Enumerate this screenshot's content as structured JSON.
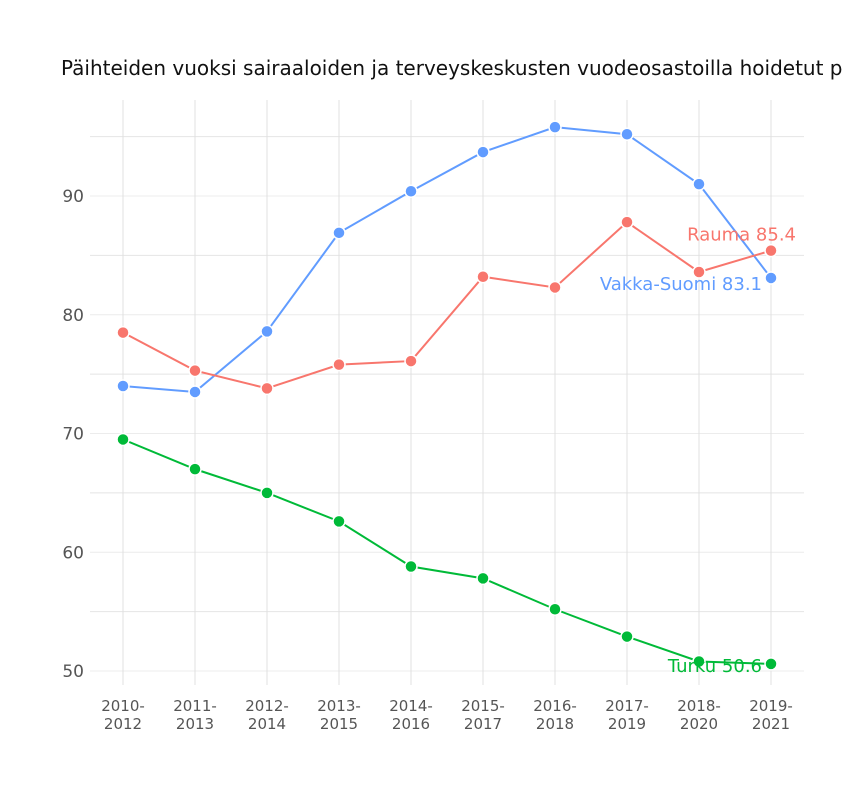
{
  "chart_data": {
    "type": "line",
    "title": "Päihteiden vuoksi sairaaloiden ja terveyskeskusten vuodeosastoilla hoidetut p",
    "categories": [
      "2010-2012",
      "2011-2013",
      "2012-2014",
      "2013-2015",
      "2014-2016",
      "2015-2017",
      "2016-2018",
      "2017-2019",
      "2018-2020",
      "2019-2021"
    ],
    "yticks": [
      50,
      60,
      70,
      80,
      90
    ],
    "ylim": [
      48,
      98
    ],
    "grid": true,
    "series": [
      {
        "name": "Vakka-Suomi",
        "color": "#619cff",
        "label": "Vakka-Suomi 83.1",
        "values": [
          74.0,
          73.5,
          78.6,
          86.9,
          90.4,
          93.7,
          95.8,
          95.2,
          91.0,
          83.1
        ]
      },
      {
        "name": "Rauma",
        "color": "#f8766d",
        "label": "Rauma 85.4",
        "values": [
          78.5,
          75.3,
          73.8,
          75.8,
          76.1,
          83.2,
          82.3,
          87.8,
          83.6,
          85.4
        ]
      },
      {
        "name": "Turku",
        "color": "#00ba38",
        "label": "Turku 50.6",
        "values": [
          69.5,
          67.0,
          65.0,
          62.6,
          58.8,
          57.8,
          55.2,
          52.9,
          50.8,
          50.6
        ]
      }
    ]
  }
}
